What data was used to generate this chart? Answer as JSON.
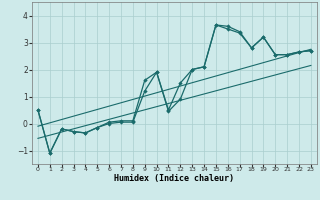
{
  "xlabel": "Humidex (Indice chaleur)",
  "xlim": [
    -0.5,
    23.5
  ],
  "ylim": [
    -1.5,
    4.5
  ],
  "xticks": [
    0,
    1,
    2,
    3,
    4,
    5,
    6,
    7,
    8,
    9,
    10,
    11,
    12,
    13,
    14,
    15,
    16,
    17,
    18,
    19,
    20,
    21,
    22,
    23
  ],
  "yticks": [
    -1,
    0,
    1,
    2,
    3,
    4
  ],
  "bg_color": "#ceeaea",
  "line_color": "#1a6b6b",
  "grid_color": "#aacece",
  "x_data": [
    0,
    1,
    2,
    3,
    4,
    5,
    6,
    7,
    8,
    9,
    10,
    11,
    12,
    13,
    14,
    15,
    16,
    17,
    18,
    19,
    20,
    21,
    22,
    23
  ],
  "y_line1": [
    0.5,
    -1.1,
    -0.2,
    -0.3,
    -0.35,
    -0.15,
    0.0,
    0.05,
    0.05,
    1.2,
    1.9,
    0.45,
    0.9,
    2.0,
    2.1,
    3.65,
    3.6,
    3.4,
    2.8,
    3.2,
    2.55,
    2.55,
    2.65,
    2.7
  ],
  "y_line2": [
    0.5,
    -1.1,
    -0.2,
    -0.3,
    -0.35,
    -0.15,
    0.05,
    0.1,
    0.1,
    1.6,
    1.9,
    0.5,
    1.5,
    2.0,
    2.1,
    3.65,
    3.5,
    3.35,
    2.8,
    3.2,
    2.55,
    2.55,
    2.65,
    2.7
  ],
  "trend1_x": [
    0,
    23
  ],
  "trend1_y": [
    -0.55,
    2.15
  ],
  "trend2_x": [
    0,
    23
  ],
  "trend2_y": [
    -0.1,
    2.75
  ]
}
